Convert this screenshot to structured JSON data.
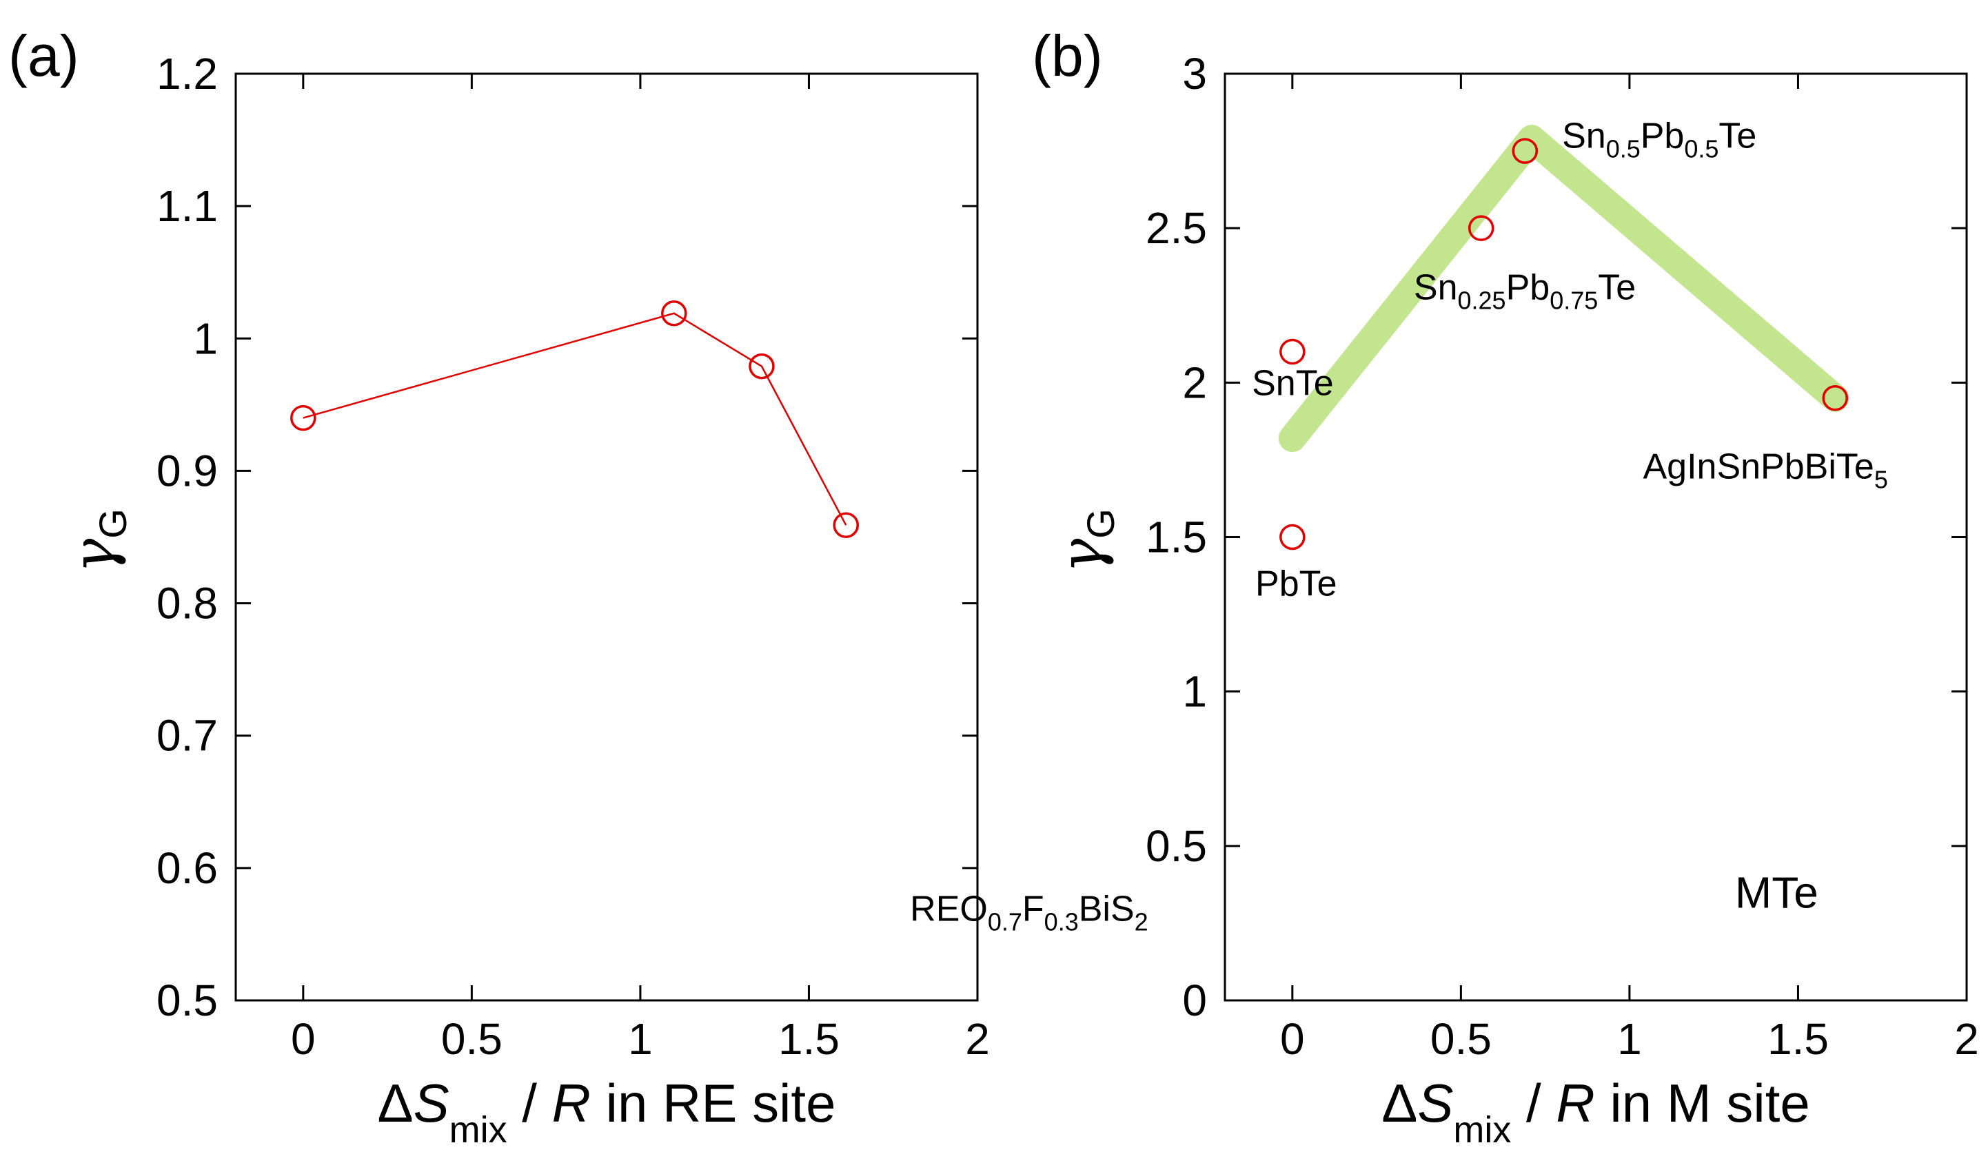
{
  "chart_data": [
    {
      "type": "line",
      "panel_label": "(a)",
      "ylabel": "γG",
      "ylabel_main": "γ",
      "ylabel_sub": "G",
      "xlabel": "ΔSmix / R in RE site",
      "xlabel_parts": {
        "delta": "Δ",
        "var": "S",
        "sub": "mix",
        "slash": " / ",
        "r": "R",
        "rest": " in RE site"
      },
      "xlim": [
        -0.2,
        2
      ],
      "ylim": [
        0.5,
        1.2
      ],
      "xticks": [
        0,
        0.5,
        1,
        1.5,
        2
      ],
      "xtick_labels": [
        "0",
        "0.5",
        "1",
        "1.5",
        "2"
      ],
      "yticks": [
        0.5,
        0.6,
        0.7,
        0.8,
        0.9,
        1.0,
        1.1,
        1.2
      ],
      "ytick_labels": [
        "0.5",
        "0.6",
        "0.7",
        "0.8",
        "0.9",
        "1",
        "1.1",
        "1.2"
      ],
      "series": [
        {
          "name": "REO0.7F0.3BiS2",
          "x": [
            0,
            1.1,
            1.36,
            1.61
          ],
          "y": [
            0.94,
            1.019,
            0.979,
            0.859
          ],
          "color": "#e00000",
          "marker": "circle",
          "line": true
        }
      ],
      "annotations": [
        {
          "id": "a-compound",
          "parts": [
            {
              "t": "REO"
            },
            {
              "t": "0.7",
              "sub": true
            },
            {
              "t": "F"
            },
            {
              "t": "0.3",
              "sub": true
            },
            {
              "t": "BiS"
            },
            {
              "t": "2",
              "sub": true
            }
          ],
          "x": 1.8,
          "y": 0.56
        }
      ]
    },
    {
      "type": "scatter",
      "panel_label": "(b)",
      "ylabel": "γG",
      "ylabel_main": "γ",
      "ylabel_sub": "G",
      "xlabel": "ΔSmix / R in M site",
      "xlabel_parts": {
        "delta": "Δ",
        "var": "S",
        "sub": "mix",
        "slash": " / ",
        "r": "R",
        "rest": " in M site"
      },
      "xlim": [
        -0.2,
        2
      ],
      "ylim": [
        0,
        3
      ],
      "xticks": [
        0,
        0.5,
        1,
        1.5,
        2
      ],
      "xtick_labels": [
        "0",
        "0.5",
        "1",
        "1.5",
        "2"
      ],
      "yticks": [
        0,
        0.5,
        1,
        1.5,
        2,
        2.5,
        3
      ],
      "ytick_labels": [
        "0",
        "0.5",
        "1",
        "1.5",
        "2",
        "2.5",
        "3"
      ],
      "series": [
        {
          "name": "MTe",
          "x": [
            0,
            0,
            0.56,
            0.69,
            1.61
          ],
          "y": [
            2.1,
            1.5,
            2.5,
            2.75,
            1.95
          ],
          "color": "#e00000",
          "marker": "circle",
          "line": false
        }
      ],
      "guide_line": {
        "x": [
          0,
          0.71,
          1.61
        ],
        "y": [
          1.82,
          2.79,
          1.95
        ],
        "color": "#b7e07a"
      },
      "annotations": [
        {
          "id": "b-sn05",
          "parts": [
            {
              "t": "Sn"
            },
            {
              "t": "0.5",
              "sub": true
            },
            {
              "t": "Pb"
            },
            {
              "t": "0.5",
              "sub": true
            },
            {
              "t": "Te"
            }
          ],
          "x": 0.8,
          "y": 2.76
        },
        {
          "id": "b-sn025",
          "parts": [
            {
              "t": "Sn"
            },
            {
              "t": "0.25",
              "sub": true
            },
            {
              "t": "Pb"
            },
            {
              "t": "0.75",
              "sub": true
            },
            {
              "t": "Te"
            }
          ],
          "x": 0.36,
          "y": 2.27
        },
        {
          "id": "b-snte",
          "parts": [
            {
              "t": "SnTe"
            }
          ],
          "x": -0.12,
          "y": 1.96
        },
        {
          "id": "b-pbte",
          "parts": [
            {
              "t": "PbTe"
            }
          ],
          "x": -0.11,
          "y": 1.31
        },
        {
          "id": "b-agin",
          "parts": [
            {
              "t": "AgInSnPbBiTe"
            },
            {
              "t": "5",
              "sub": true
            }
          ],
          "x": 1.04,
          "y": 1.69
        },
        {
          "id": "b-mte",
          "parts": [
            {
              "t": "MTe"
            }
          ],
          "x": 1.56,
          "y": 0.3,
          "big": true
        }
      ]
    }
  ]
}
